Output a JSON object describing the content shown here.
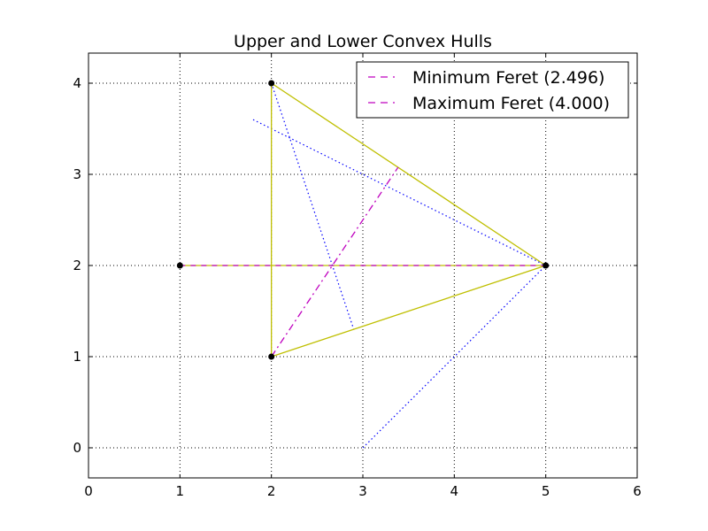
{
  "chart_data": {
    "type": "line",
    "title": "Upper and Lower Convex Hulls",
    "xlabel": "",
    "ylabel": "",
    "xlim": [
      0,
      6
    ],
    "ylim": [
      -0.33,
      4.33
    ],
    "xticks": [
      0,
      1,
      2,
      3,
      4,
      5,
      6
    ],
    "yticks": [
      0,
      1,
      2,
      3,
      4
    ],
    "grid": true,
    "legend_position": "top-right",
    "points": [
      {
        "x": 1,
        "y": 2
      },
      {
        "x": 2,
        "y": 4
      },
      {
        "x": 2,
        "y": 1
      },
      {
        "x": 5,
        "y": 2
      }
    ],
    "hull_edges": [
      [
        [
          1,
          2
        ],
        [
          5,
          2
        ]
      ],
      [
        [
          2,
          4
        ],
        [
          2,
          1
        ]
      ],
      [
        [
          2,
          4
        ],
        [
          5,
          2
        ]
      ],
      [
        [
          2,
          1
        ],
        [
          5,
          2
        ]
      ]
    ],
    "series": [
      {
        "name": "Minimum Feret (2.496)",
        "style": "dashdot",
        "color": "#bf00bf",
        "x": [
          2,
          3.385
        ],
        "y": [
          1,
          3.077
        ]
      },
      {
        "name": "Maximum Feret (4.000)",
        "style": "dashed",
        "color": "#bf00bf",
        "x": [
          1,
          5
        ],
        "y": [
          2,
          2
        ]
      }
    ],
    "caliper_lines": [
      [
        [
          1.8,
          3.6
        ],
        [
          5,
          2
        ]
      ],
      [
        [
          3,
          0
        ],
        [
          5,
          2
        ]
      ],
      [
        [
          2,
          4
        ],
        [
          2.9,
          1.3
        ]
      ]
    ],
    "colors": {
      "hull": "#bfbf00",
      "feret": "#bf00bf",
      "caliper": "#0000ff",
      "points": "#000000",
      "grid": "#000000"
    }
  }
}
